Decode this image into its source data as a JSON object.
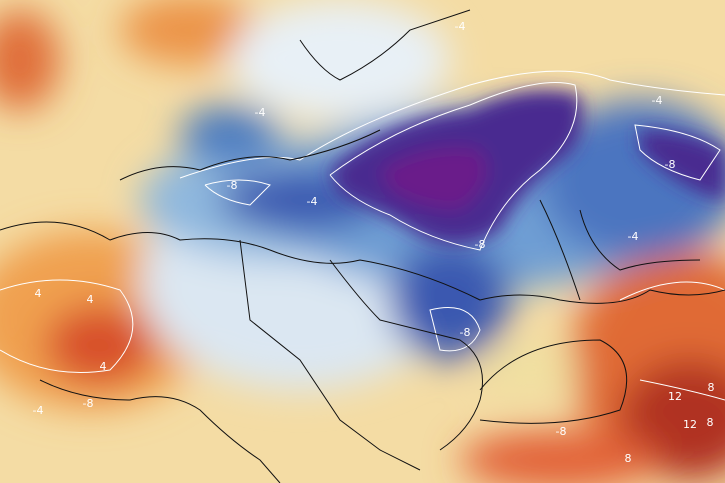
{
  "map": {
    "contour_labels": [
      "-4",
      "-8",
      "-8",
      "-4",
      "-8",
      "-4",
      "-8",
      "-4",
      "4",
      "4",
      "4",
      "-8",
      "-4",
      "12",
      "12",
      "8",
      "8",
      "-8",
      "8",
      "-4"
    ]
  }
}
